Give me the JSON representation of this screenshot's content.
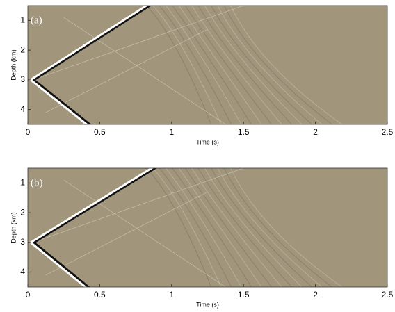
{
  "chart_data": [
    {
      "type": "image",
      "panel_label": "(a)",
      "xlabel": "Time (s)",
      "ylabel": "Depth (km)",
      "xlim": [
        0,
        2.5
      ],
      "xticks": [
        0,
        0.5,
        1,
        1.5,
        2,
        2.5
      ],
      "ylim": [
        4.5,
        0.5
      ],
      "yticks": [
        1,
        2,
        3,
        4
      ]
    },
    {
      "type": "image",
      "panel_label": "(b)",
      "xlabel": "Time (s)",
      "ylabel": "Depth (km)",
      "xlim": [
        0,
        2.5
      ],
      "xticks": [
        0,
        0.5,
        1,
        1.5,
        2,
        2.5
      ],
      "ylim": [
        4.5,
        0.5
      ],
      "yticks": [
        1,
        2,
        3,
        4
      ]
    }
  ]
}
